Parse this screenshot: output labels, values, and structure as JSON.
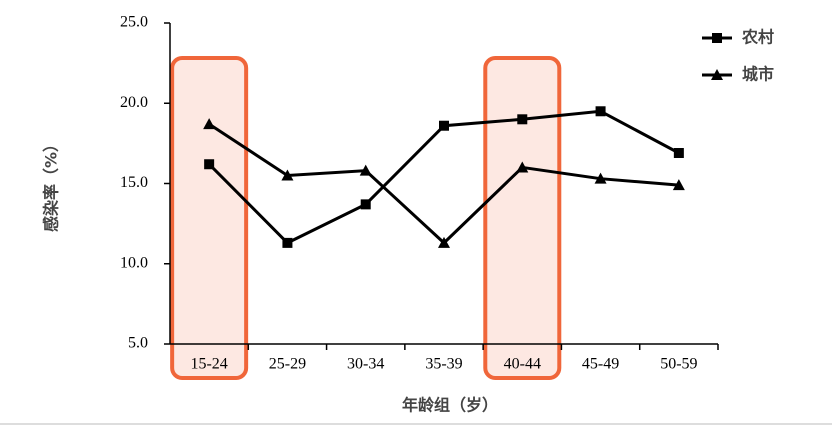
{
  "chart_data": {
    "type": "line",
    "x_label": "年龄组（岁）",
    "y_label": "感染率（%）",
    "categories": [
      "15-24",
      "25-29",
      "30-34",
      "35-39",
      "40-44",
      "45-49",
      "50-59"
    ],
    "series": [
      {
        "name": "农村",
        "color": "#000000",
        "marker": "square",
        "values": [
          16.2,
          11.3,
          13.7,
          18.6,
          19.0,
          19.5,
          16.9
        ]
      },
      {
        "name": "城市",
        "color": "#000000",
        "marker": "triangle",
        "values": [
          18.7,
          15.5,
          15.8,
          11.3,
          16.0,
          15.3,
          14.9
        ]
      }
    ],
    "ylim": [
      5,
      25
    ],
    "yticks": [
      {
        "value": 5,
        "label": "5.0"
      },
      {
        "value": 10,
        "label": "10.0"
      },
      {
        "value": 15,
        "label": "15.0"
      },
      {
        "value": 20,
        "label": "20.0"
      },
      {
        "value": 25,
        "label": "25.0"
      }
    ],
    "highlighted_categories": [
      0,
      4
    ],
    "highlight_color": "#f0663a",
    "legend_position": "upper right"
  }
}
